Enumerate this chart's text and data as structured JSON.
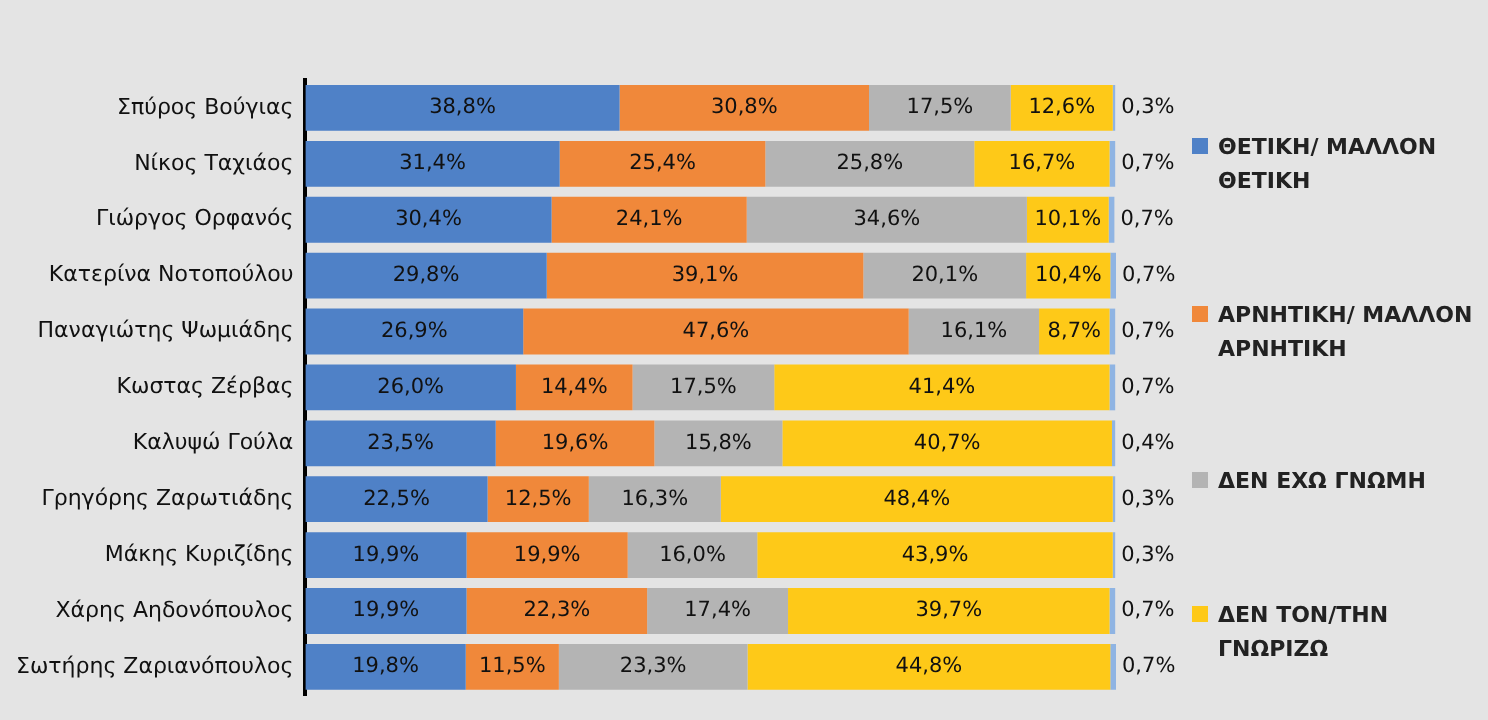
{
  "chart_data": {
    "type": "bar",
    "orientation": "horizontal",
    "stacked": true,
    "categories": [
      "Σπύρος Βούγιας",
      "Νίκος Ταχιάος",
      "Γιώργος Ορφανός",
      "Κατερίνα Νοτοπούλου",
      "Παναγιώτης Ψωμιάδης",
      "Κωστας Ζέρβας",
      "Καλυψώ Γούλα",
      "Γρηγόρης Ζαρωτιάδης",
      "Μάκης Κυριζίδης",
      "Χάρης Αηδονόπουλος",
      "Σωτήρης Ζαριανόπουλος"
    ],
    "tick_labels": "y",
    "grid": false,
    "legend": "right",
    "series": [
      {
        "name": "ΘΕΤΙΚΗ/ ΜΑΛΛΟΝ ΘΕΤΙΚΗ",
        "color": "#4f81c7",
        "values": [
          38.8,
          31.4,
          30.4,
          29.8,
          26.9,
          26.0,
          23.5,
          22.5,
          19.9,
          19.9,
          19.8
        ],
        "value_labels": [
          "38,8%",
          "31,4%",
          "30,4%",
          "29,8%",
          "26,9%",
          "26,0%",
          "23,5%",
          "22,5%",
          "19,9%",
          "19,9%",
          "19,8%"
        ]
      },
      {
        "name": "ΑΡΝΗΤΙΚΗ/ ΜΑΛΛΟΝ ΑΡΝΗΤΙΚΗ",
        "color": "#f0883a",
        "values": [
          30.8,
          25.4,
          24.1,
          39.1,
          47.6,
          14.4,
          19.6,
          12.5,
          19.9,
          22.3,
          11.5
        ],
        "value_labels": [
          "30,8%",
          "25,4%",
          "24,1%",
          "39,1%",
          "47,6%",
          "14,4%",
          "19,6%",
          "12,5%",
          "19,9%",
          "22,3%",
          "11,5%"
        ]
      },
      {
        "name": "ΔΕΝ ΕΧΩ ΓΝΩΜΗ",
        "color": "#b4b4b4",
        "values": [
          17.5,
          25.8,
          34.6,
          20.1,
          16.1,
          17.5,
          15.8,
          16.3,
          16.0,
          17.4,
          23.3
        ],
        "value_labels": [
          "17,5%",
          "25,8%",
          "34,6%",
          "20,1%",
          "16,1%",
          "17,5%",
          "15,8%",
          "16,3%",
          "16,0%",
          "17,4%",
          "23,3%"
        ]
      },
      {
        "name": "ΔΕΝ ΤΟΝ/ΤΗΝ ΓΝΩΡΙΖΩ",
        "color": "#fec918",
        "values": [
          12.6,
          16.7,
          10.1,
          10.4,
          8.7,
          41.4,
          40.7,
          48.4,
          43.9,
          39.7,
          44.8
        ],
        "value_labels": [
          "12,6%",
          "16,7%",
          "10,1%",
          "10,4%",
          "8,7%",
          "41,4%",
          "40,7%",
          "48,4%",
          "43,9%",
          "39,7%",
          "44,8%"
        ]
      },
      {
        "color": "#8fb4e3",
        "values": [
          0.3,
          0.7,
          0.7,
          0.7,
          0.7,
          0.7,
          0.4,
          0.3,
          0.3,
          0.7,
          0.7
        ],
        "value_labels": [
          "0,3%",
          "0,7%",
          "0,7%",
          "0,7%",
          "0,7%",
          "0,7%",
          "0,4%",
          "0,3%",
          "0,3%",
          "0,7%",
          "0,7%"
        ]
      }
    ]
  }
}
